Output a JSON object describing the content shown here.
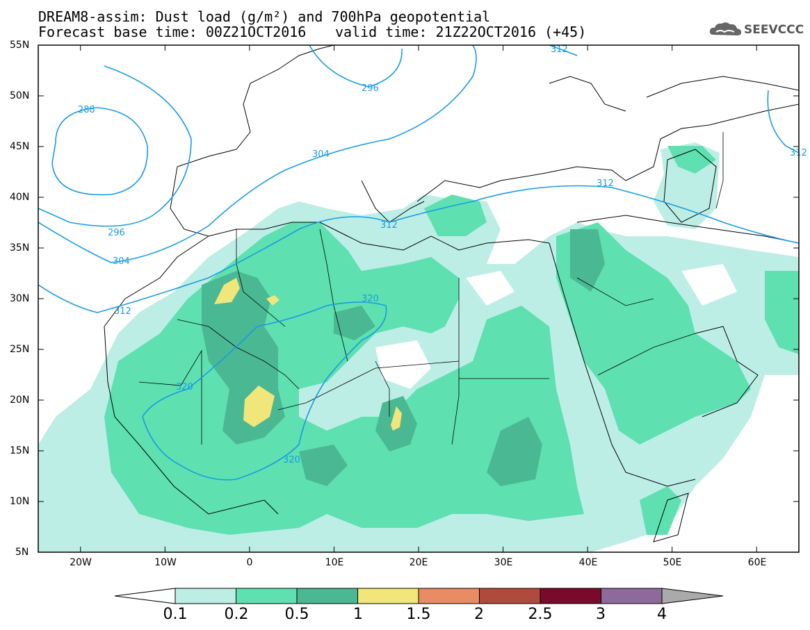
{
  "title": {
    "line1": "DREAM8-assim: Dust load (g/m²) and 700hPa geopotential",
    "line2": "Forecast base time: 00Z21OCT2016",
    "line3": "valid time: 21Z22OCT2016 (+45)"
  },
  "logo": {
    "icon": "cloud-icon",
    "text": "SEEVCCC"
  },
  "axes": {
    "lat_labels": [
      "55N",
      "50N",
      "45N",
      "40N",
      "35N",
      "30N",
      "25N",
      "20N",
      "15N",
      "10N",
      "5N"
    ],
    "lon_labels": [
      "20W",
      "10W",
      "0",
      "10E",
      "20E",
      "30E",
      "40E",
      "50E",
      "60E"
    ],
    "lat_range": [
      5,
      55
    ],
    "lon_range": [
      -25,
      65
    ]
  },
  "contours": {
    "color": "#1a9be0",
    "labels": [
      "288",
      "296",
      "296",
      "304",
      "304",
      "312",
      "312",
      "312",
      "312",
      "320",
      "320",
      "320",
      "312"
    ]
  },
  "colorbar": {
    "ticks": [
      "0.1",
      "0.2",
      "0.5",
      "1",
      "1.5",
      "2",
      "2.5",
      "3",
      "4"
    ],
    "colors": [
      "#bdeee6",
      "#5ee0b1",
      "#4bb894",
      "#f0e67a",
      "#e78c63",
      "#b04a3c",
      "#7a0a2c",
      "#8e6a9c"
    ],
    "low_end_color": "#ffffff",
    "high_end_color": "#aaaaaa"
  },
  "dust_levels": {
    "level1": "#bdeee6",
    "level2": "#5ee0b1",
    "level3": "#4bb894",
    "level4": "#f0e67a"
  }
}
